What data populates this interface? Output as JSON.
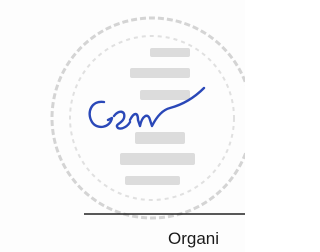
{
  "document": {
    "caption": "Organi"
  }
}
